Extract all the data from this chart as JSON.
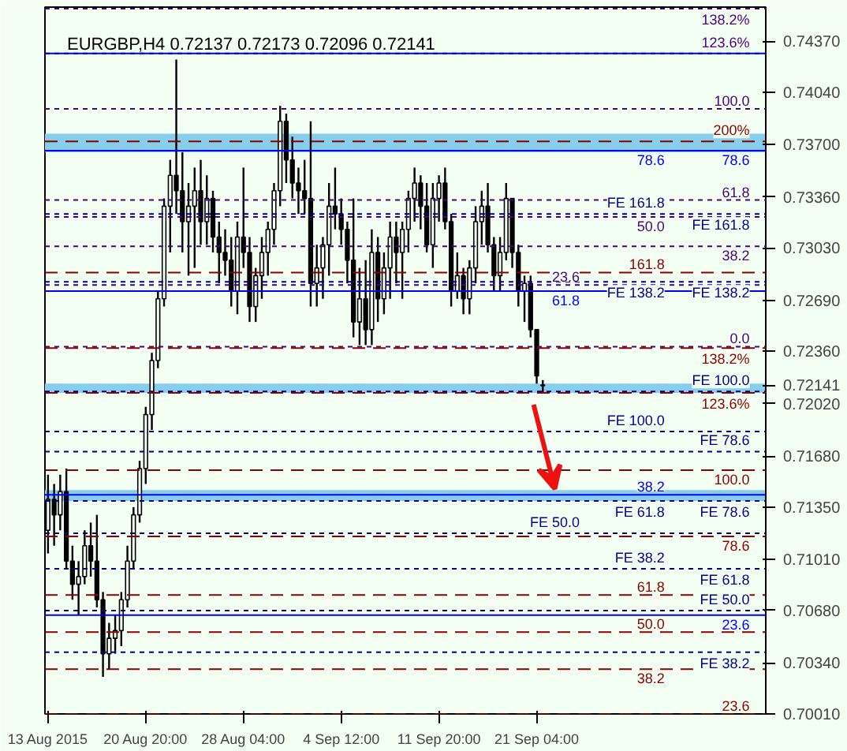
{
  "chart_data": {
    "type": "candlestick",
    "title": "EURGBP,H4 0.72137 0.72173 0.72096 0.72141",
    "categories": [
      "13 Aug 2015",
      null,
      null,
      null,
      null,
      null,
      null,
      null,
      null,
      null,
      null,
      null,
      null,
      null,
      null,
      null,
      "20 Aug 20:00",
      null,
      null,
      null,
      null,
      null,
      null,
      null,
      null,
      null,
      null,
      null,
      null,
      null,
      null,
      null,
      "28 Aug 04:00",
      null,
      null,
      null,
      null,
      null,
      null,
      null,
      null,
      null,
      null,
      null,
      null,
      null,
      null,
      null,
      "4 Sep 12:00",
      null,
      null,
      null,
      null,
      null,
      null,
      null,
      null,
      null,
      null,
      null,
      null,
      null,
      null,
      null,
      "11 Sep 20:00",
      null,
      null,
      null,
      null,
      null,
      null,
      null,
      null,
      null,
      null,
      null,
      null,
      null,
      null,
      null,
      "21 Sep 04:00",
      null,
      null,
      null,
      null,
      null,
      null,
      null,
      null,
      null,
      null,
      null,
      null,
      null,
      null,
      null,
      null,
      null,
      null,
      null,
      null,
      null,
      null,
      null,
      null,
      null,
      null,
      null,
      null,
      null,
      null,
      null,
      null,
      null,
      null,
      null,
      null,
      null
    ],
    "ohlc": [
      [
        0.712,
        0.7156,
        0.7105,
        0.714
      ],
      [
        0.714,
        0.715,
        0.711,
        0.713
      ],
      [
        0.713,
        0.7156,
        0.712,
        0.7145
      ],
      [
        0.7145,
        0.716,
        0.7095,
        0.71
      ],
      [
        0.71,
        0.711,
        0.7075,
        0.7085
      ],
      [
        0.7085,
        0.71,
        0.7065,
        0.709
      ],
      [
        0.709,
        0.712,
        0.7085,
        0.711
      ],
      [
        0.711,
        0.7125,
        0.709,
        0.71
      ],
      [
        0.71,
        0.713,
        0.707,
        0.7075
      ],
      [
        0.7075,
        0.708,
        0.7025,
        0.704
      ],
      [
        0.704,
        0.706,
        0.703,
        0.705
      ],
      [
        0.705,
        0.7065,
        0.704,
        0.7055
      ],
      [
        0.7055,
        0.708,
        0.7045,
        0.7075
      ],
      [
        0.7075,
        0.711,
        0.707,
        0.71
      ],
      [
        0.71,
        0.7135,
        0.7095,
        0.713
      ],
      [
        0.713,
        0.7165,
        0.7125,
        0.716
      ],
      [
        0.716,
        0.72,
        0.715,
        0.7195
      ],
      [
        0.7195,
        0.7235,
        0.7185,
        0.723
      ],
      [
        0.723,
        0.7275,
        0.7225,
        0.727
      ],
      [
        0.727,
        0.7335,
        0.7265,
        0.733
      ],
      [
        0.733,
        0.736,
        0.73,
        0.735
      ],
      [
        0.735,
        0.7425,
        0.7325,
        0.734
      ],
      [
        0.734,
        0.7365,
        0.73,
        0.732
      ],
      [
        0.732,
        0.7345,
        0.7285,
        0.733
      ],
      [
        0.733,
        0.7355,
        0.729,
        0.734
      ],
      [
        0.734,
        0.736,
        0.7305,
        0.732
      ],
      [
        0.732,
        0.735,
        0.7305,
        0.7335
      ],
      [
        0.7335,
        0.734,
        0.73,
        0.731
      ],
      [
        0.731,
        0.732,
        0.728,
        0.73
      ],
      [
        0.73,
        0.7315,
        0.7285,
        0.7295
      ],
      [
        0.7295,
        0.731,
        0.7265,
        0.7275
      ],
      [
        0.7275,
        0.732,
        0.726,
        0.731
      ],
      [
        0.731,
        0.7355,
        0.729,
        0.73
      ],
      [
        0.73,
        0.731,
        0.7255,
        0.7265
      ],
      [
        0.7265,
        0.729,
        0.7255,
        0.7285
      ],
      [
        0.7285,
        0.731,
        0.727,
        0.73
      ],
      [
        0.73,
        0.732,
        0.7285,
        0.7315
      ],
      [
        0.7315,
        0.7345,
        0.7305,
        0.734
      ],
      [
        0.734,
        0.7395,
        0.733,
        0.7385
      ],
      [
        0.7385,
        0.739,
        0.7345,
        0.736
      ],
      [
        0.736,
        0.7375,
        0.7335,
        0.7345
      ],
      [
        0.7345,
        0.7355,
        0.7325,
        0.734
      ],
      [
        0.734,
        0.736,
        0.7325,
        0.7335
      ],
      [
        0.7335,
        0.7385,
        0.7265,
        0.728
      ],
      [
        0.728,
        0.7305,
        0.7265,
        0.729
      ],
      [
        0.729,
        0.731,
        0.727,
        0.7305
      ],
      [
        0.7305,
        0.7345,
        0.7285,
        0.733
      ],
      [
        0.733,
        0.7355,
        0.7315,
        0.7325
      ],
      [
        0.7325,
        0.7335,
        0.7305,
        0.7315
      ],
      [
        0.7315,
        0.732,
        0.728,
        0.7295
      ],
      [
        0.7295,
        0.7335,
        0.7245,
        0.7255
      ],
      [
        0.7255,
        0.729,
        0.724,
        0.727
      ],
      [
        0.727,
        0.7295,
        0.724,
        0.725
      ],
      [
        0.725,
        0.7315,
        0.724,
        0.73
      ],
      [
        0.73,
        0.731,
        0.7255,
        0.727
      ],
      [
        0.727,
        0.73,
        0.726,
        0.729
      ],
      [
        0.729,
        0.732,
        0.727,
        0.731
      ],
      [
        0.731,
        0.732,
        0.728,
        0.73
      ],
      [
        0.73,
        0.732,
        0.727,
        0.7315
      ],
      [
        0.7315,
        0.734,
        0.73,
        0.7335
      ],
      [
        0.7335,
        0.7355,
        0.732,
        0.7345
      ],
      [
        0.7345,
        0.735,
        0.7315,
        0.733
      ],
      [
        0.733,
        0.7345,
        0.73,
        0.7305
      ],
      [
        0.7305,
        0.7345,
        0.729,
        0.7335
      ],
      [
        0.7335,
        0.735,
        0.732,
        0.7345
      ],
      [
        0.7345,
        0.7355,
        0.7315,
        0.732
      ],
      [
        0.732,
        0.7325,
        0.7265,
        0.7275
      ],
      [
        0.7275,
        0.73,
        0.727,
        0.7285
      ],
      [
        0.7285,
        0.729,
        0.726,
        0.727
      ],
      [
        0.727,
        0.7295,
        0.726,
        0.729
      ],
      [
        0.729,
        0.733,
        0.728,
        0.732
      ],
      [
        0.732,
        0.734,
        0.7305,
        0.733
      ],
      [
        0.733,
        0.7345,
        0.73,
        0.7305
      ],
      [
        0.7305,
        0.731,
        0.7275,
        0.7285
      ],
      [
        0.7285,
        0.731,
        0.7275,
        0.73
      ],
      [
        0.73,
        0.7345,
        0.7295,
        0.7335
      ],
      [
        0.7335,
        0.7335,
        0.729,
        0.73
      ],
      [
        0.73,
        0.7305,
        0.7265,
        0.7275
      ],
      [
        0.7275,
        0.7285,
        0.7255,
        0.728
      ],
      [
        0.728,
        0.7285,
        0.7245,
        0.725
      ],
      [
        0.725,
        0.725,
        0.7215,
        0.722
      ],
      [
        0.72137,
        0.72173,
        0.72096,
        0.72141
      ],
      null,
      null,
      null,
      null,
      null,
      null,
      null,
      null,
      null,
      null,
      null,
      null,
      null,
      null,
      null,
      null,
      null,
      null,
      null,
      null,
      null,
      null,
      null,
      null,
      null,
      null,
      null,
      null,
      null,
      null,
      null,
      null,
      null,
      null,
      null,
      null
    ],
    "ylim": [
      0.7001,
      0.7459
    ],
    "yticks": [
      {
        "value": 0.7437,
        "label": "0.74370"
      },
      {
        "value": 0.7404,
        "label": "0.74040"
      },
      {
        "value": 0.737,
        "label": "0.73700"
      },
      {
        "value": 0.7336,
        "label": "0.73360"
      },
      {
        "value": 0.7303,
        "label": "0.73030"
      },
      {
        "value": 0.7269,
        "label": "0.72690"
      },
      {
        "value": 0.7236,
        "label": "0.72360"
      },
      {
        "value": 0.72141,
        "label": "0.72141"
      },
      {
        "value": 0.7202,
        "label": "0.72020"
      },
      {
        "value": 0.7168,
        "label": "0.71680"
      },
      {
        "value": 0.7135,
        "label": "0.71350"
      },
      {
        "value": 0.7101,
        "label": "0.71010"
      },
      {
        "value": 0.7068,
        "label": "0.70680"
      },
      {
        "value": 0.7034,
        "label": "0.70340"
      },
      {
        "value": 0.7001,
        "label": "0.70010"
      }
    ],
    "grid": false,
    "color": "#000000",
    "bands": [
      {
        "axis": "y",
        "from": 0.7365,
        "to": 0.7377,
        "color": "#87ceeb"
      },
      {
        "axis": "y",
        "from": 0.7209,
        "to": 0.7215,
        "color": "#87ceeb"
      },
      {
        "axis": "y",
        "from": 0.7139,
        "to": 0.7146,
        "color": "#87ceeb"
      }
    ],
    "ref_lines": [
      {
        "axis": "y",
        "value": 0.7458,
        "color": "#4b0082",
        "line_style": "dotted"
      },
      {
        "axis": "y",
        "value": 0.7429,
        "color": "#4b0082",
        "line_style": "dotted"
      },
      {
        "axis": "y",
        "value": 0.7429,
        "color": "#0000ff",
        "line_style": "solid"
      },
      {
        "axis": "y",
        "value": 0.7393,
        "color": "#4b0082",
        "line_style": "dotted"
      },
      {
        "axis": "y",
        "value": 0.7372,
        "color": "#8b0000",
        "line_style": "dashed"
      },
      {
        "axis": "y",
        "value": 0.7366,
        "color": "#0000ff",
        "line_style": "solid"
      },
      {
        "axis": "y",
        "value": 0.7334,
        "color": "#4b0082",
        "line_style": "dotted"
      },
      {
        "axis": "y",
        "value": 0.7325,
        "color": "#00008b",
        "line_style": "dotted"
      },
      {
        "axis": "y",
        "value": 0.7323,
        "color": "#4b0082",
        "line_style": "dotted"
      },
      {
        "axis": "y",
        "value": 0.7304,
        "color": "#4b0082",
        "line_style": "dotted"
      },
      {
        "axis": "y",
        "value": 0.7287,
        "color": "#8b0000",
        "line_style": "dashed"
      },
      {
        "axis": "y",
        "value": 0.7281,
        "color": "#00008b",
        "line_style": "dotted"
      },
      {
        "axis": "y",
        "value": 0.7279,
        "color": "#4b0082",
        "line_style": "dotted"
      },
      {
        "axis": "y",
        "value": 0.7275,
        "color": "#0000ff",
        "line_style": "solid"
      },
      {
        "axis": "y",
        "value": 0.7239,
        "color": "#4b0082",
        "line_style": "dotted"
      },
      {
        "axis": "y",
        "value": 0.7238,
        "color": "#8b0000",
        "line_style": "dashed"
      },
      {
        "axis": "y",
        "value": 0.721,
        "color": "#00008b",
        "line_style": "dotted"
      },
      {
        "axis": "y",
        "value": 0.7209,
        "color": "#8b0000",
        "line_style": "dashed"
      },
      {
        "axis": "y",
        "value": 0.7184,
        "color": "#00008b",
        "line_style": "dotted"
      },
      {
        "axis": "y",
        "value": 0.7171,
        "color": "#00008b",
        "line_style": "dotted"
      },
      {
        "axis": "y",
        "value": 0.7159,
        "color": "#8b0000",
        "line_style": "dashed"
      },
      {
        "axis": "y",
        "value": 0.7143,
        "color": "#0000ff",
        "line_style": "solid"
      },
      {
        "axis": "y",
        "value": 0.7139,
        "color": "#00008b",
        "line_style": "dotted"
      },
      {
        "axis": "y",
        "value": 0.7118,
        "color": "#00008b",
        "line_style": "dotted"
      },
      {
        "axis": "y",
        "value": 0.7116,
        "color": "#8b0000",
        "line_style": "dashed"
      },
      {
        "axis": "y",
        "value": 0.7095,
        "color": "#00008b",
        "line_style": "dotted"
      },
      {
        "axis": "y",
        "value": 0.7078,
        "color": "#8b0000",
        "line_style": "dashed"
      },
      {
        "axis": "y",
        "value": 0.7068,
        "color": "#00008b",
        "line_style": "dotted"
      },
      {
        "axis": "y",
        "value": 0.7065,
        "color": "#0000ff",
        "line_style": "solid"
      },
      {
        "axis": "y",
        "value": 0.7054,
        "color": "#8b0000",
        "line_style": "dashed"
      },
      {
        "axis": "y",
        "value": 0.7041,
        "color": "#00008b",
        "line_style": "dotted"
      },
      {
        "axis": "y",
        "value": 0.703,
        "color": "#8b0000",
        "line_style": "dashed"
      },
      {
        "axis": "y",
        "value": 0.7001,
        "color": "#8b0000",
        "line_style": "dashed"
      }
    ],
    "annotations": [
      {
        "text": "138.2%",
        "y": 0.7458
      },
      {
        "text": "123.6%",
        "y": 0.7429
      },
      {
        "text": "100.0",
        "y": 0.7393
      },
      {
        "text": "200%",
        "y": 0.7372
      },
      {
        "text": "78.6",
        "y": 0.7366
      },
      {
        "text": "78.6",
        "y": 0.7366
      },
      {
        "text": "61.8",
        "y": 0.7334
      },
      {
        "text": "FE 161.8",
        "y": 0.7325
      },
      {
        "text": "FE 161.8",
        "y": 0.7325
      },
      {
        "text": "50.0",
        "y": 0.7323
      },
      {
        "text": "38.2",
        "y": 0.7304
      },
      {
        "text": "161.8",
        "y": 0.7287
      },
      {
        "text": "FE 138.2",
        "y": 0.7281
      },
      {
        "text": "FE 138.2",
        "y": 0.7281
      },
      {
        "text": "23.6",
        "y": 0.7279
      },
      {
        "text": "61.8",
        "y": 0.7275
      },
      {
        "text": "0.0",
        "y": 0.7239
      },
      {
        "text": "138.2%",
        "y": 0.7238
      },
      {
        "text": "FE 100.0",
        "y": 0.721
      },
      {
        "text": "123.6%",
        "y": 0.7209
      },
      {
        "text": "FE 100.0",
        "y": 0.7184
      },
      {
        "text": "FE 78.6",
        "y": 0.7171
      },
      {
        "text": "100.0",
        "y": 0.7159
      },
      {
        "text": "38.2",
        "y": 0.7143
      },
      {
        "text": "FE 78.6",
        "y": 0.7139
      },
      {
        "text": "FE 61.8",
        "y": 0.7139
      },
      {
        "text": "FE 50.0",
        "y": 0.7118
      },
      {
        "text": "78.6",
        "y": 0.7116
      },
      {
        "text": "FE 61.8",
        "y": 0.7095
      },
      {
        "text": "FE 38.2",
        "y": 0.7095
      },
      {
        "text": "61.8",
        "y": 0.7078
      },
      {
        "text": "FE 50.0",
        "y": 0.7068
      },
      {
        "text": "23.6",
        "y": 0.7065
      },
      {
        "text": "50.0",
        "y": 0.7054
      },
      {
        "text": "FE 38.2",
        "y": 0.7041
      },
      {
        "text": "38.2",
        "y": 0.703
      },
      {
        "text": "23.6",
        "y": 0.7001
      }
    ]
  }
}
